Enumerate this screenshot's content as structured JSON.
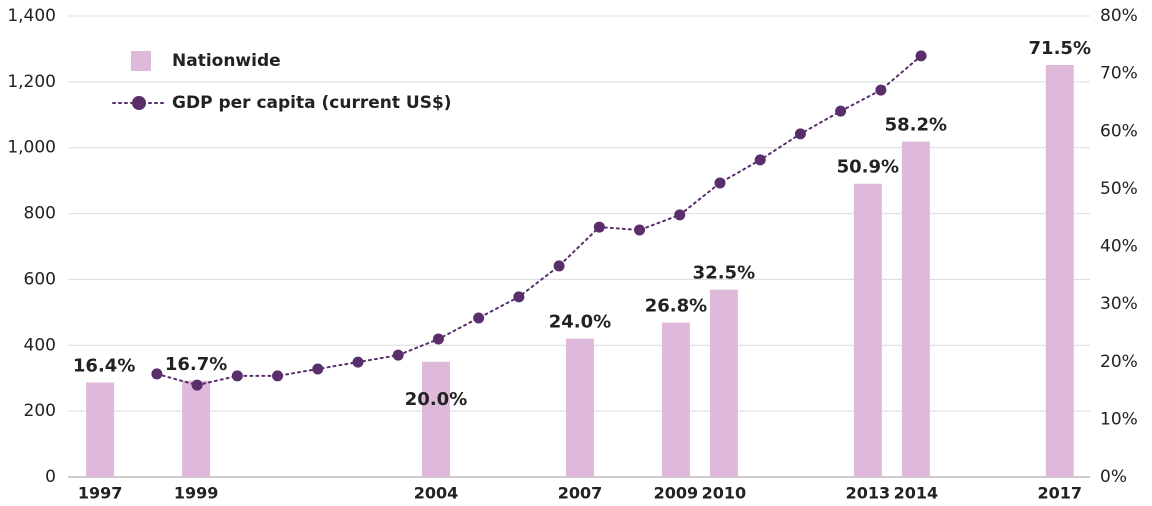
{
  "chart_data": {
    "type": "bar-line",
    "xlim": [
      1996.33,
      2017.63
    ],
    "xticks": [
      1997,
      1999,
      2004,
      2007,
      2009,
      2010,
      2013,
      2014,
      2017
    ],
    "x2lim": [
      1995.79,
      2021.2
    ],
    "ylim": [
      0,
      1400
    ],
    "yticks": [
      0,
      200,
      400,
      600,
      800,
      {
        "value": 1000,
        "label": "1,000"
      },
      {
        "value": 1200,
        "label": "1,200"
      },
      {
        "value": 1400,
        "label": "1,400"
      }
    ],
    "y2lim": [
      0,
      80
    ],
    "y2ticks": [
      {
        "value": 0,
        "label": "0%"
      },
      {
        "value": 10,
        "label": "10%"
      },
      {
        "value": 20,
        "label": "20%"
      },
      {
        "value": 30,
        "label": "30%"
      },
      {
        "value": 40,
        "label": "40%"
      },
      {
        "value": 50,
        "label": "50%"
      },
      {
        "value": 60,
        "label": "60%"
      },
      {
        "value": 70,
        "label": "70%"
      },
      {
        "value": 80,
        "label": "80%"
      }
    ],
    "grid": true,
    "legend": "top-left",
    "series": [
      {
        "name": "Nationwide",
        "type": "bar",
        "axis": "y2",
        "color": "#dfb9d9",
        "x": [
          1997,
          1999,
          2004,
          2007,
          2009,
          2010,
          2013,
          2014,
          2017
        ],
        "values": [
          16.4,
          16.7,
          20.0,
          24.0,
          26.8,
          32.5,
          50.9,
          58.2,
          71.5
        ],
        "value_labels": [
          "16.4%",
          "16.7%",
          "20.0%",
          "24.0%",
          "26.8%",
          "32.5%",
          "50.9%",
          "58.2%",
          "71.5%"
        ]
      },
      {
        "name": "GDP per capita (current US$)",
        "type": "line",
        "axis": "x2",
        "color": "#5a2d6b",
        "x": [
          1998,
          1999,
          2000,
          2001,
          2002,
          2003,
          2004,
          2005,
          2006,
          2007,
          2008,
          2009,
          2010,
          2011,
          2012,
          2013,
          2014,
          2015,
          2016,
          2017
        ],
        "values": [
          313,
          279,
          307,
          307,
          328,
          349,
          370,
          419,
          483,
          547,
          641,
          759,
          750,
          796,
          893,
          963,
          1042,
          1111,
          1175,
          1279
        ]
      }
    ]
  }
}
